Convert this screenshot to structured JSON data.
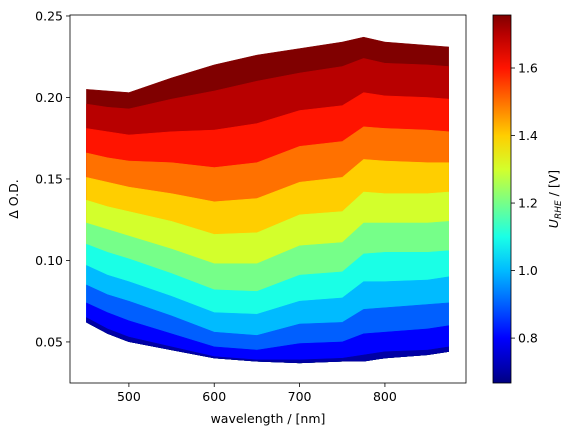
{
  "chart_data": {
    "type": "area",
    "x_label": "wavelength / [nm]",
    "y_label": "Δ O.D.",
    "x": [
      450,
      475,
      500,
      550,
      600,
      650,
      700,
      750,
      775,
      800,
      850,
      875
    ],
    "series": [
      {
        "u": 0.66,
        "color": "#00007f",
        "values": [
          0.062,
          0.055,
          0.05,
          0.045,
          0.04,
          0.038,
          0.037,
          0.038,
          0.038,
          0.04,
          0.042,
          0.044
        ]
      },
      {
        "u": 0.7,
        "color": "#0000a4",
        "values": [
          0.065,
          0.058,
          0.053,
          0.047,
          0.041,
          0.039,
          0.039,
          0.04,
          0.042,
          0.044,
          0.045,
          0.047
        ]
      },
      {
        "u": 0.8,
        "color": "#0000ff",
        "values": [
          0.074,
          0.068,
          0.063,
          0.055,
          0.047,
          0.045,
          0.049,
          0.05,
          0.055,
          0.056,
          0.058,
          0.06
        ]
      },
      {
        "u": 0.9,
        "color": "#005fff",
        "values": [
          0.085,
          0.079,
          0.075,
          0.066,
          0.056,
          0.054,
          0.061,
          0.062,
          0.07,
          0.071,
          0.073,
          0.074
        ]
      },
      {
        "u": 1.0,
        "color": "#00bbff",
        "values": [
          0.097,
          0.091,
          0.087,
          0.078,
          0.068,
          0.067,
          0.075,
          0.077,
          0.087,
          0.087,
          0.088,
          0.09
        ]
      },
      {
        "u": 1.1,
        "color": "#1affe6",
        "values": [
          0.11,
          0.105,
          0.101,
          0.092,
          0.082,
          0.081,
          0.091,
          0.093,
          0.104,
          0.105,
          0.105,
          0.106
        ]
      },
      {
        "u": 1.2,
        "color": "#76ff89",
        "values": [
          0.123,
          0.119,
          0.115,
          0.107,
          0.098,
          0.098,
          0.109,
          0.111,
          0.123,
          0.123,
          0.123,
          0.124
        ]
      },
      {
        "u": 1.3,
        "color": "#d3ff2c",
        "values": [
          0.137,
          0.133,
          0.13,
          0.124,
          0.116,
          0.117,
          0.128,
          0.13,
          0.142,
          0.141,
          0.141,
          0.142
        ]
      },
      {
        "u": 1.4,
        "color": "#ffce00",
        "values": [
          0.151,
          0.148,
          0.145,
          0.141,
          0.136,
          0.138,
          0.148,
          0.151,
          0.162,
          0.161,
          0.16,
          0.16
        ]
      },
      {
        "u": 1.5,
        "color": "#ff7100",
        "values": [
          0.166,
          0.163,
          0.161,
          0.16,
          0.157,
          0.16,
          0.17,
          0.173,
          0.182,
          0.181,
          0.18,
          0.179
        ]
      },
      {
        "u": 1.6,
        "color": "#ff1400",
        "values": [
          0.181,
          0.179,
          0.177,
          0.179,
          0.18,
          0.184,
          0.192,
          0.195,
          0.203,
          0.201,
          0.2,
          0.199
        ]
      },
      {
        "u": 1.7,
        "color": "#b80000",
        "values": [
          0.196,
          0.194,
          0.193,
          0.199,
          0.204,
          0.21,
          0.215,
          0.219,
          0.224,
          0.221,
          0.22,
          0.219
        ]
      },
      {
        "u": 1.76,
        "color": "#800000",
        "values": [
          0.205,
          0.204,
          0.203,
          0.212,
          0.22,
          0.226,
          0.23,
          0.234,
          0.237,
          0.234,
          0.232,
          0.231
        ]
      }
    ],
    "xlim": [
      431,
      895
    ],
    "xticks": [
      500,
      600,
      700,
      800
    ],
    "ylim": [
      0.0248,
      0.2506
    ],
    "yticks": [
      0.05,
      {
        "value": 0.1,
        "label": "0.10"
      },
      0.15,
      {
        "value": 0.2,
        "label": "0.20"
      },
      0.25
    ],
    "colorbar": {
      "symbol": "U",
      "subscript": "RHE",
      "unit": "/ [V]",
      "clim": [
        0.667,
        1.757
      ],
      "ticks": [
        0.8,
        {
          "value": 1.0,
          "label": "1.0"
        },
        1.2,
        1.4,
        1.6
      ]
    }
  }
}
